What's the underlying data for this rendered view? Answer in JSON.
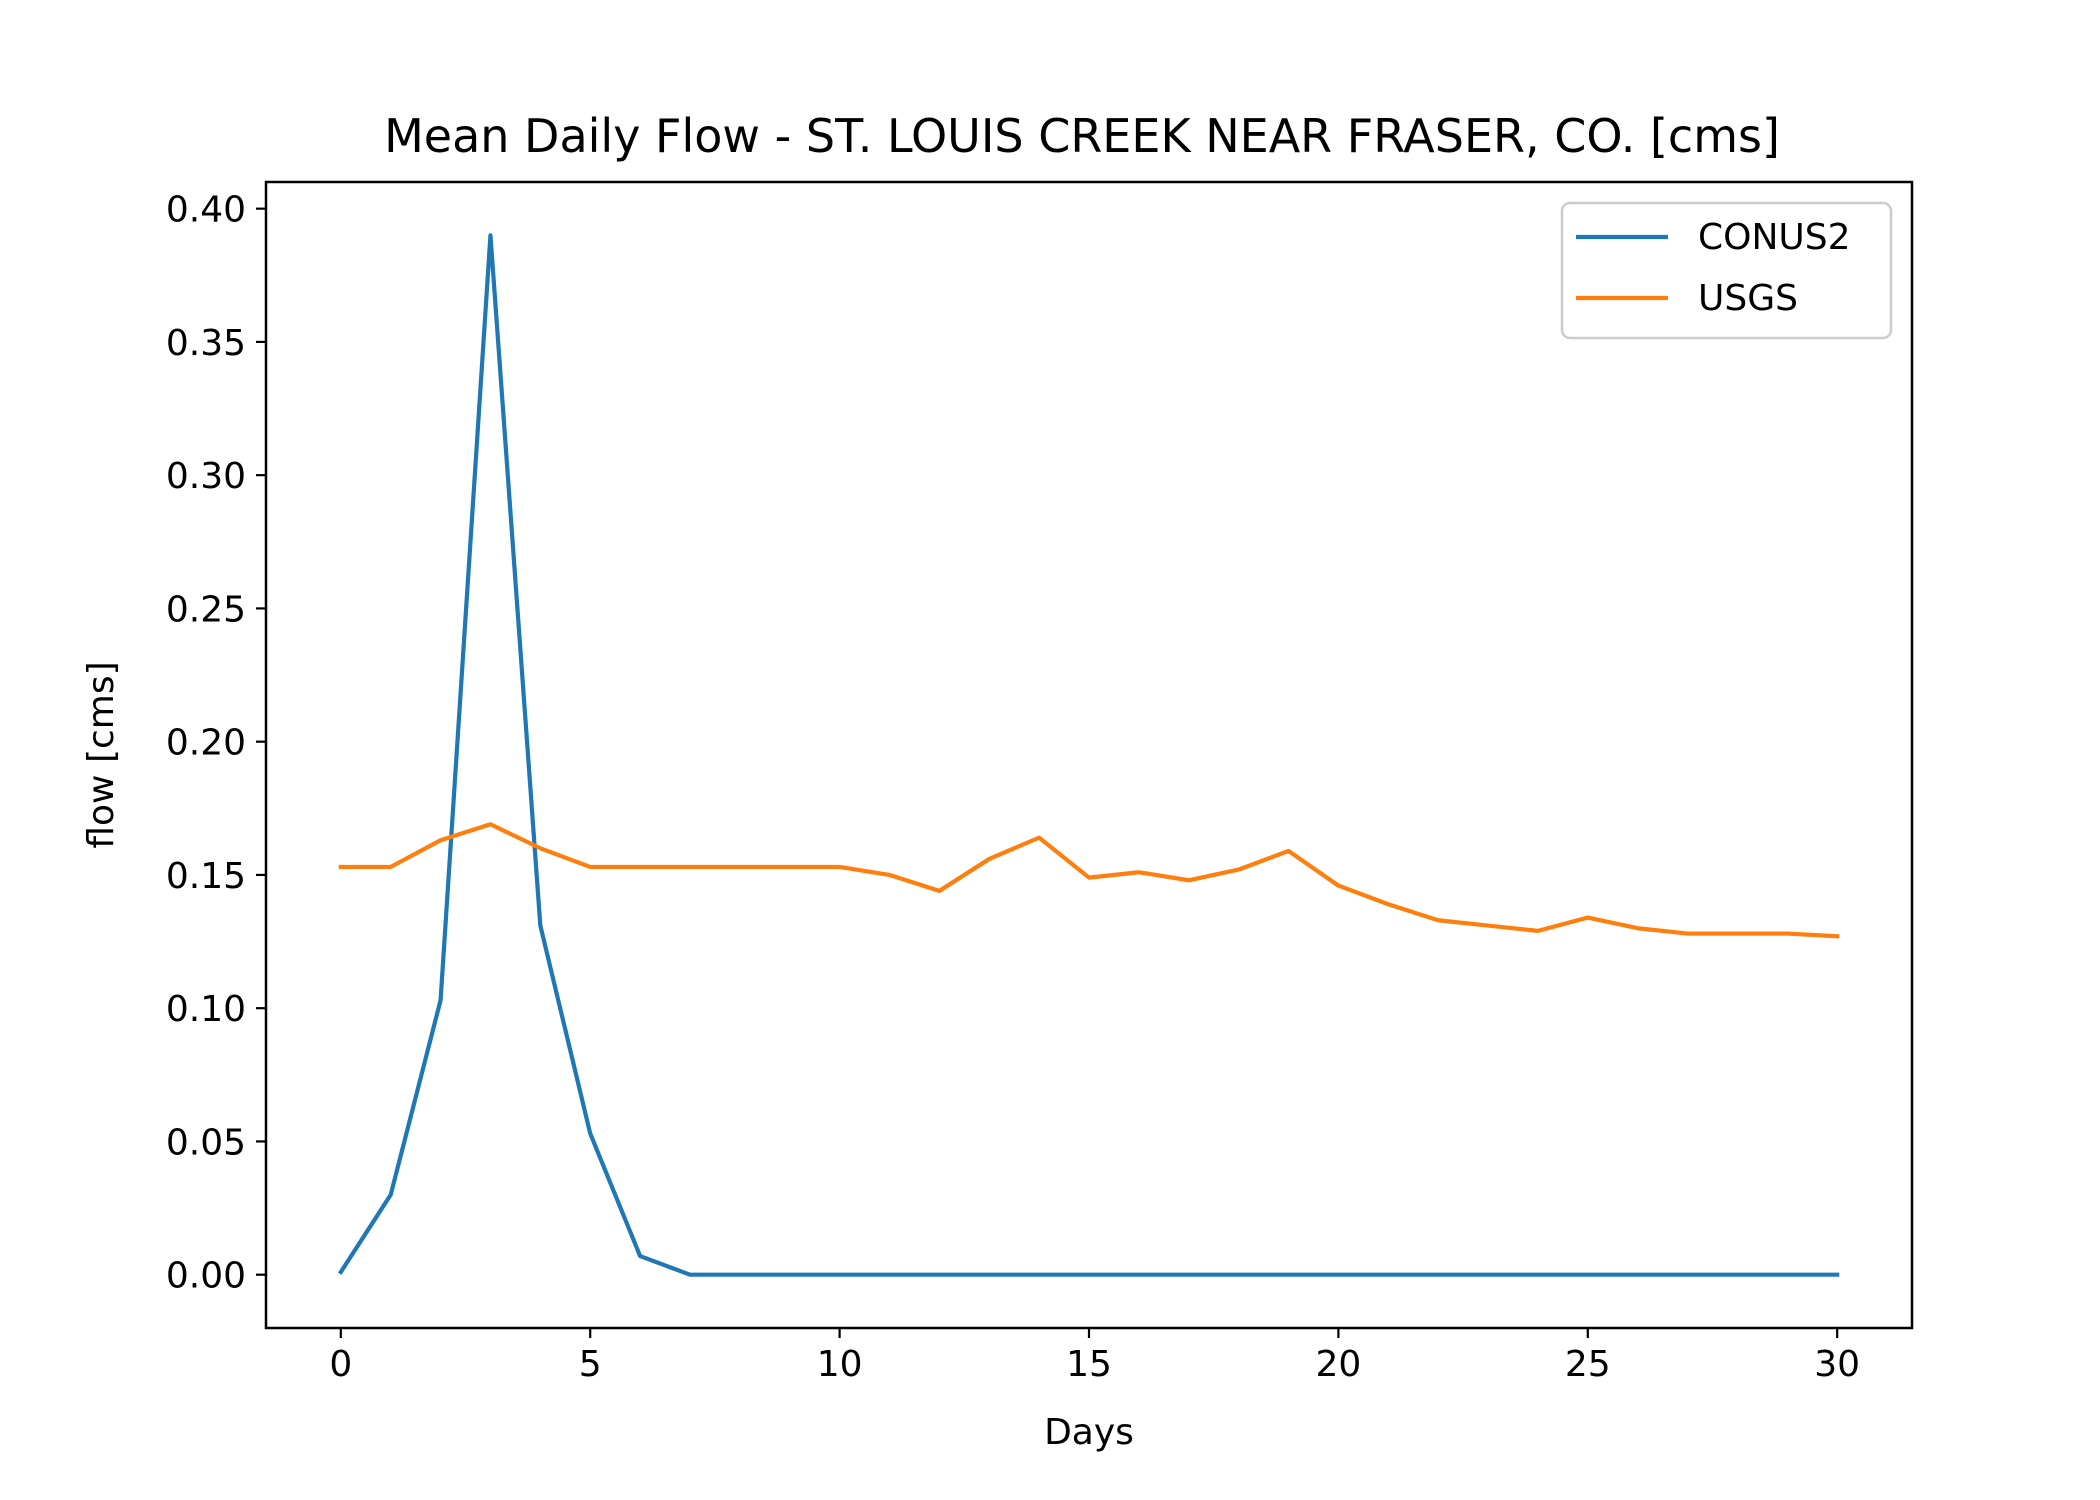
{
  "chart_data": {
    "type": "line",
    "title": "Mean Daily Flow - ST. LOUIS CREEK NEAR FRASER, CO. [cms]",
    "xlabel": "Days",
    "ylabel": "flow [cms]",
    "xlim": [
      -1.5,
      31.5
    ],
    "ylim": [
      -0.02,
      0.41
    ],
    "xticks": [
      0,
      5,
      10,
      15,
      20,
      25,
      30
    ],
    "xtick_labels": [
      "0",
      "5",
      "10",
      "15",
      "20",
      "25",
      "30"
    ],
    "yticks": [
      0.0,
      0.05,
      0.1,
      0.15,
      0.2,
      0.25,
      0.3,
      0.35,
      0.4
    ],
    "ytick_labels": [
      "0.00",
      "0.05",
      "0.10",
      "0.15",
      "0.20",
      "0.25",
      "0.30",
      "0.35",
      "0.40"
    ],
    "grid": false,
    "legend_position": "top-right",
    "x": [
      0,
      1,
      2,
      3,
      4,
      5,
      6,
      7,
      8,
      9,
      10,
      11,
      12,
      13,
      14,
      15,
      16,
      17,
      18,
      19,
      20,
      21,
      22,
      23,
      24,
      25,
      26,
      27,
      28,
      29,
      30
    ],
    "series": [
      {
        "name": "CONUS2",
        "color": "#1f77b4",
        "values": [
          0.001,
          0.03,
          0.103,
          0.39,
          0.131,
          0.053,
          0.007,
          0.0,
          0.0,
          0.0,
          0.0,
          0.0,
          0.0,
          0.0,
          0.0,
          0.0,
          0.0,
          0.0,
          0.0,
          0.0,
          0.0,
          0.0,
          0.0,
          0.0,
          0.0,
          0.0,
          0.0,
          0.0,
          0.0,
          0.0,
          0.0
        ]
      },
      {
        "name": "USGS",
        "color": "#ff7f0e",
        "values": [
          0.153,
          0.153,
          0.163,
          0.169,
          0.16,
          0.153,
          0.153,
          0.153,
          0.153,
          0.153,
          0.153,
          0.15,
          0.144,
          0.156,
          0.164,
          0.149,
          0.151,
          0.148,
          0.152,
          0.159,
          0.146,
          0.139,
          0.133,
          0.131,
          0.129,
          0.134,
          0.13,
          0.128,
          0.128,
          0.128,
          0.127
        ]
      }
    ]
  }
}
